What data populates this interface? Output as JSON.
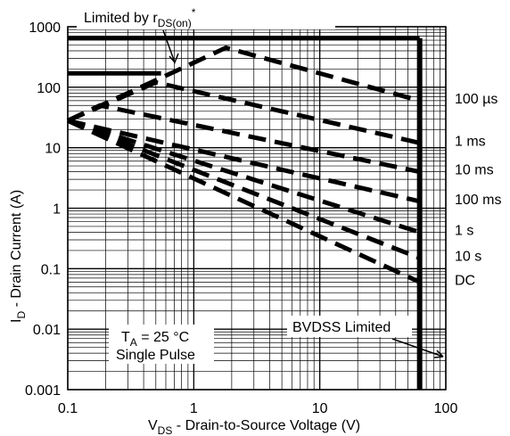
{
  "chart_data": {
    "type": "line",
    "title": "",
    "xscale": "log",
    "yscale": "log",
    "xlim": [
      0.1,
      100
    ],
    "ylim": [
      0.001,
      1000
    ],
    "grid": true,
    "xlabel": {
      "main": "V",
      "sub": "DS",
      "rest": " - Drain-to-Source Voltage (V)"
    },
    "ylabel": {
      "main": "I",
      "sub": "D",
      "rest": " - Drain Current (A)"
    },
    "xticks": [
      {
        "v": 0.1,
        "label": "0.1"
      },
      {
        "v": 1,
        "label": "1"
      },
      {
        "v": 10,
        "label": "10"
      },
      {
        "v": 100,
        "label": "100"
      }
    ],
    "yticks": [
      {
        "v": 1000,
        "label": "1000"
      },
      {
        "v": 100,
        "label": "100"
      },
      {
        "v": 10,
        "label": "10"
      },
      {
        "v": 1,
        "label": "1"
      },
      {
        "v": 0.1,
        "label": "0.1"
      },
      {
        "v": 0.01,
        "label": "0.01"
      },
      {
        "v": 0.001,
        "label": "0.001"
      }
    ],
    "limits": [
      {
        "name": "package-limit",
        "points": [
          [
            0.1,
            650
          ],
          [
            62,
            650
          ]
        ]
      },
      {
        "name": "short-limit",
        "points": [
          [
            0.1,
            170
          ],
          [
            0.55,
            170
          ]
        ]
      },
      {
        "name": "bvdss-limit",
        "points": [
          [
            62,
            0.001
          ],
          [
            62,
            650
          ]
        ]
      }
    ],
    "series": [
      {
        "name": "100 µs",
        "points": [
          [
            0.1,
            28
          ],
          [
            0.7,
            180
          ],
          [
            1.8,
            450
          ],
          [
            62,
            60
          ]
        ]
      },
      {
        "name": "1 ms",
        "points": [
          [
            0.1,
            28
          ],
          [
            0.5,
            120
          ],
          [
            62,
            12
          ]
        ]
      },
      {
        "name": "10 ms",
        "points": [
          [
            0.1,
            28
          ],
          [
            0.18,
            50
          ],
          [
            62,
            4
          ]
        ]
      },
      {
        "name": "100 ms",
        "points": [
          [
            0.1,
            28
          ],
          [
            62,
            1.3
          ]
        ]
      },
      {
        "name": "1 s",
        "points": [
          [
            0.1,
            28
          ],
          [
            62,
            0.4
          ]
        ]
      },
      {
        "name": "10 s",
        "points": [
          [
            0.1,
            28
          ],
          [
            62,
            0.15
          ]
        ]
      },
      {
        "name": "DC",
        "points": [
          [
            0.1,
            28
          ],
          [
            62,
            0.06
          ]
        ]
      }
    ],
    "annotations": {
      "rds": {
        "main": "Limited by r",
        "sub": "DS(on)",
        "sup": "*"
      },
      "ta_line1": {
        "main": "T",
        "sub": "A",
        "rest": " = 25 °C"
      },
      "ta_line2": "Single Pulse",
      "bvdss": "BVDSS Limited"
    }
  }
}
